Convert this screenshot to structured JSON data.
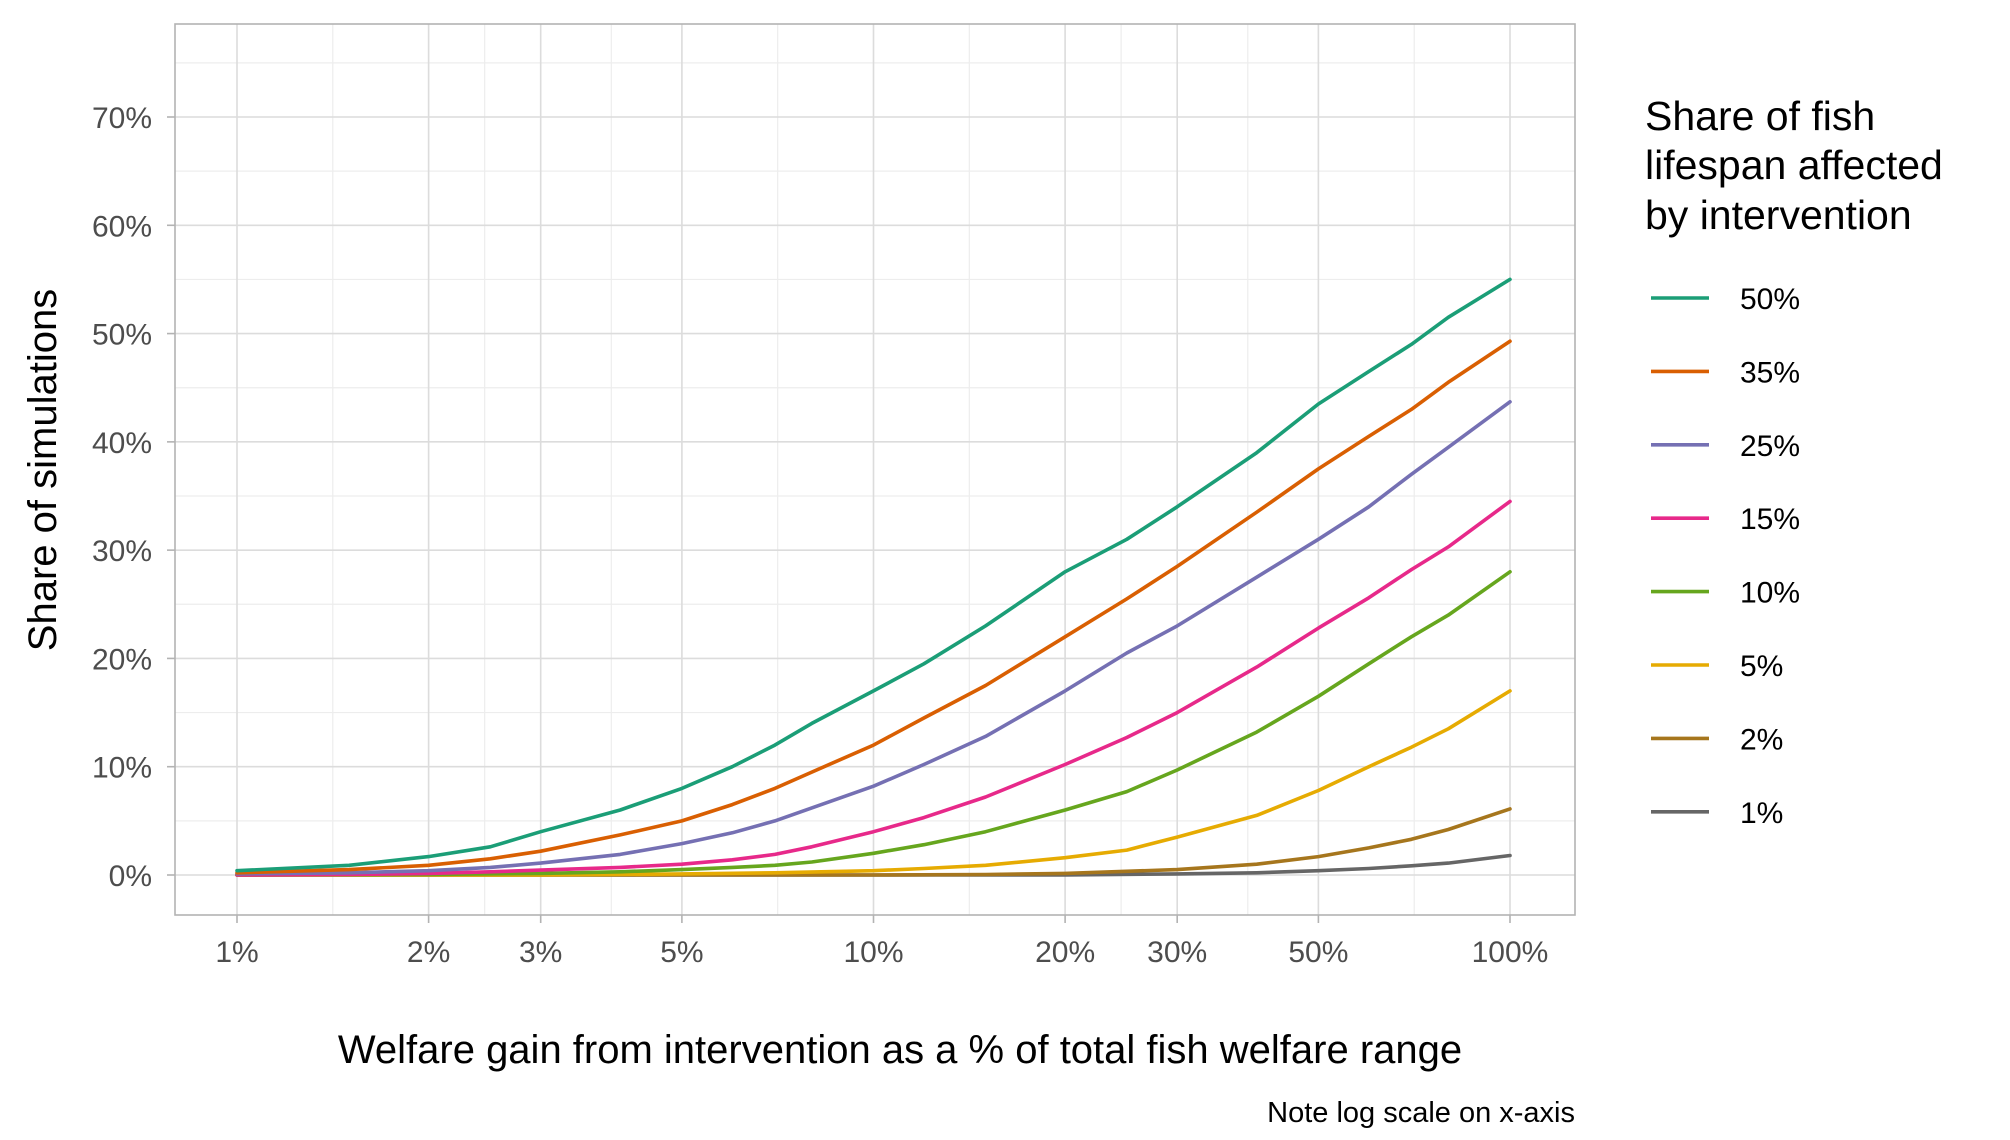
{
  "chart_data": {
    "type": "line",
    "xlabel": "Welfare gain from intervention as a % of total fish welfare range",
    "ylabel": "Share of simulations",
    "caption": "Note log scale on x-axis",
    "x_scale": "log",
    "x_unit": "percent",
    "xlim": [
      0.9,
      110
    ],
    "ylim": [
      -3.5,
      78
    ],
    "x_ticks": [
      {
        "value": 1,
        "label": "1%"
      },
      {
        "value": 2,
        "label": "2%"
      },
      {
        "value": 3,
        "label": "3%"
      },
      {
        "value": 5,
        "label": "5%"
      },
      {
        "value": 10,
        "label": "10%"
      },
      {
        "value": 20,
        "label": "20%"
      },
      {
        "value": 30,
        "label": "30%"
      },
      {
        "value": 50,
        "label": "50%"
      },
      {
        "value": 100,
        "label": "100%"
      }
    ],
    "y_ticks": [
      {
        "value": 0,
        "label": "0%"
      },
      {
        "value": 10,
        "label": "10%"
      },
      {
        "value": 20,
        "label": "20%"
      },
      {
        "value": 30,
        "label": "30%"
      },
      {
        "value": 40,
        "label": "40%"
      },
      {
        "value": 50,
        "label": "50%"
      },
      {
        "value": 60,
        "label": "60%"
      },
      {
        "value": 70,
        "label": "70%"
      }
    ],
    "grid": true,
    "legend": {
      "title_lines": [
        "Share of fish",
        "lifespan affected",
        "by intervention"
      ],
      "position": "right"
    },
    "series": [
      {
        "name": "50%",
        "color": "#1b9e77",
        "points": [
          [
            1,
            0.4
          ],
          [
            1.5,
            0.9
          ],
          [
            2,
            1.7
          ],
          [
            2.5,
            2.6
          ],
          [
            3,
            4.0
          ],
          [
            4,
            6.0
          ],
          [
            5,
            8.0
          ],
          [
            6,
            10.0
          ],
          [
            7,
            12.0
          ],
          [
            8,
            14.0
          ],
          [
            10,
            17.0
          ],
          [
            12,
            19.5
          ],
          [
            15,
            23.0
          ],
          [
            20,
            28.0
          ],
          [
            25,
            31.0
          ],
          [
            30,
            34.0
          ],
          [
            40,
            39.0
          ],
          [
            50,
            43.5
          ],
          [
            60,
            46.5
          ],
          [
            70,
            49.0
          ],
          [
            80,
            51.5
          ],
          [
            100,
            55.0
          ]
        ]
      },
      {
        "name": "35%",
        "color": "#d95f02",
        "points": [
          [
            1,
            0.2
          ],
          [
            1.5,
            0.5
          ],
          [
            2,
            0.9
          ],
          [
            2.5,
            1.5
          ],
          [
            3,
            2.2
          ],
          [
            4,
            3.7
          ],
          [
            5,
            5.0
          ],
          [
            6,
            6.5
          ],
          [
            7,
            8.0
          ],
          [
            8,
            9.5
          ],
          [
            10,
            12.0
          ],
          [
            12,
            14.5
          ],
          [
            15,
            17.5
          ],
          [
            20,
            22.0
          ],
          [
            25,
            25.5
          ],
          [
            30,
            28.5
          ],
          [
            40,
            33.5
          ],
          [
            50,
            37.5
          ],
          [
            60,
            40.5
          ],
          [
            70,
            43.0
          ],
          [
            80,
            45.5
          ],
          [
            100,
            49.3
          ]
        ]
      },
      {
        "name": "25%",
        "color": "#7570b3",
        "points": [
          [
            1,
            0.1
          ],
          [
            1.5,
            0.2
          ],
          [
            2,
            0.4
          ],
          [
            2.5,
            0.7
          ],
          [
            3,
            1.1
          ],
          [
            4,
            1.9
          ],
          [
            5,
            2.9
          ],
          [
            6,
            3.9
          ],
          [
            7,
            5.0
          ],
          [
            8,
            6.2
          ],
          [
            10,
            8.2
          ],
          [
            12,
            10.2
          ],
          [
            15,
            12.8
          ],
          [
            20,
            17.0
          ],
          [
            25,
            20.5
          ],
          [
            30,
            23.0
          ],
          [
            40,
            27.5
          ],
          [
            50,
            31.0
          ],
          [
            60,
            34.0
          ],
          [
            70,
            37.0
          ],
          [
            80,
            39.5
          ],
          [
            100,
            43.7
          ]
        ]
      },
      {
        "name": "15%",
        "color": "#e7298a",
        "points": [
          [
            1,
            0.0
          ],
          [
            1.5,
            0.05
          ],
          [
            2,
            0.15
          ],
          [
            2.5,
            0.3
          ],
          [
            3,
            0.45
          ],
          [
            4,
            0.7
          ],
          [
            5,
            1.0
          ],
          [
            6,
            1.4
          ],
          [
            7,
            1.9
          ],
          [
            8,
            2.6
          ],
          [
            10,
            4.0
          ],
          [
            12,
            5.3
          ],
          [
            15,
            7.2
          ],
          [
            20,
            10.2
          ],
          [
            25,
            12.7
          ],
          [
            30,
            15.0
          ],
          [
            40,
            19.2
          ],
          [
            50,
            22.8
          ],
          [
            60,
            25.6
          ],
          [
            70,
            28.2
          ],
          [
            80,
            30.3
          ],
          [
            100,
            34.5
          ]
        ]
      },
      {
        "name": "10%",
        "color": "#66a61e",
        "points": [
          [
            1,
            0.0
          ],
          [
            2,
            0.05
          ],
          [
            3,
            0.15
          ],
          [
            4,
            0.3
          ],
          [
            5,
            0.5
          ],
          [
            6,
            0.7
          ],
          [
            7,
            0.9
          ],
          [
            8,
            1.2
          ],
          [
            10,
            2.0
          ],
          [
            12,
            2.8
          ],
          [
            15,
            4.0
          ],
          [
            20,
            6.0
          ],
          [
            25,
            7.7
          ],
          [
            30,
            9.7
          ],
          [
            40,
            13.2
          ],
          [
            50,
            16.5
          ],
          [
            60,
            19.5
          ],
          [
            70,
            22.0
          ],
          [
            80,
            24.0
          ],
          [
            100,
            28.0
          ]
        ]
      },
      {
        "name": "5%",
        "color": "#e6ab02",
        "points": [
          [
            1,
            0.0
          ],
          [
            3,
            0.0
          ],
          [
            5,
            0.1
          ],
          [
            7,
            0.2
          ],
          [
            10,
            0.4
          ],
          [
            12,
            0.6
          ],
          [
            15,
            0.9
          ],
          [
            20,
            1.6
          ],
          [
            25,
            2.3
          ],
          [
            30,
            3.5
          ],
          [
            40,
            5.5
          ],
          [
            50,
            7.8
          ],
          [
            60,
            10.0
          ],
          [
            70,
            11.8
          ],
          [
            80,
            13.5
          ],
          [
            100,
            17.0
          ]
        ]
      },
      {
        "name": "2%",
        "color": "#a6761d",
        "points": [
          [
            1,
            0.0
          ],
          [
            10,
            0.0
          ],
          [
            15,
            0.05
          ],
          [
            20,
            0.15
          ],
          [
            30,
            0.5
          ],
          [
            40,
            1.0
          ],
          [
            50,
            1.7
          ],
          [
            60,
            2.5
          ],
          [
            70,
            3.3
          ],
          [
            80,
            4.2
          ],
          [
            100,
            6.1
          ]
        ]
      },
      {
        "name": "1%",
        "color": "#666666",
        "points": [
          [
            1,
            0.0
          ],
          [
            20,
            0.0
          ],
          [
            30,
            0.1
          ],
          [
            40,
            0.2
          ],
          [
            50,
            0.4
          ],
          [
            60,
            0.6
          ],
          [
            70,
            0.85
          ],
          [
            80,
            1.1
          ],
          [
            100,
            1.8
          ]
        ]
      }
    ]
  }
}
